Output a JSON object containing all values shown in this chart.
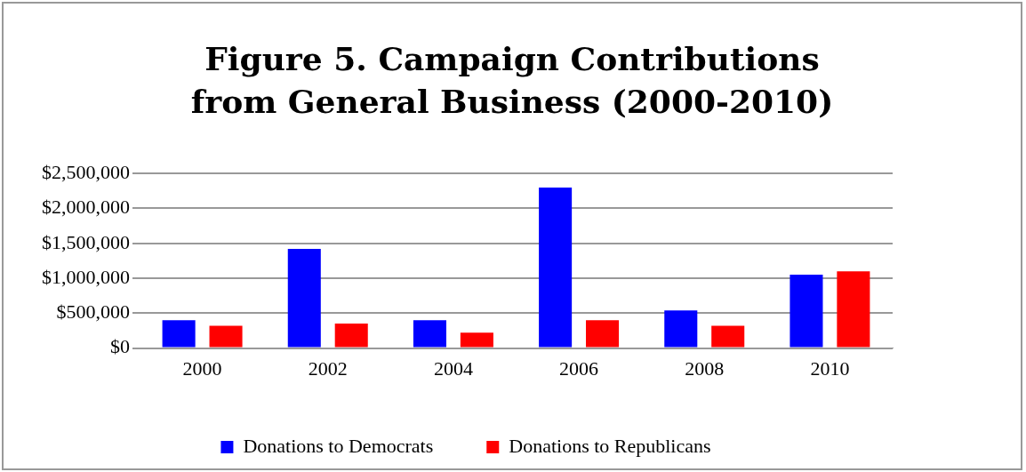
{
  "chart_data": {
    "type": "bar",
    "title": "Figure 5. Campaign Contributions from General Business  (2000-2010)",
    "categories": [
      "2000",
      "2002",
      "2004",
      "2006",
      "2008",
      "2010"
    ],
    "series": [
      {
        "name": "Donations to Democrats",
        "color": "#0000ff",
        "values": [
          400000,
          1420000,
          400000,
          2300000,
          540000,
          1050000
        ]
      },
      {
        "name": "Donations to Republicans",
        "color": "#ff0000",
        "values": [
          320000,
          350000,
          220000,
          400000,
          320000,
          1100000
        ]
      }
    ],
    "ylim": [
      0,
      2500000
    ],
    "yticks": [
      {
        "value": 0,
        "label": "$0"
      },
      {
        "value": 500000,
        "label": "$500,000"
      },
      {
        "value": 1000000,
        "label": "$1,000,000"
      },
      {
        "value": 1500000,
        "label": "$1,500,000"
      },
      {
        "value": 2000000,
        "label": "$2,000,000"
      },
      {
        "value": 2500000,
        "label": "$2,500,000"
      }
    ],
    "grid": "y",
    "legend": "bottom"
  }
}
